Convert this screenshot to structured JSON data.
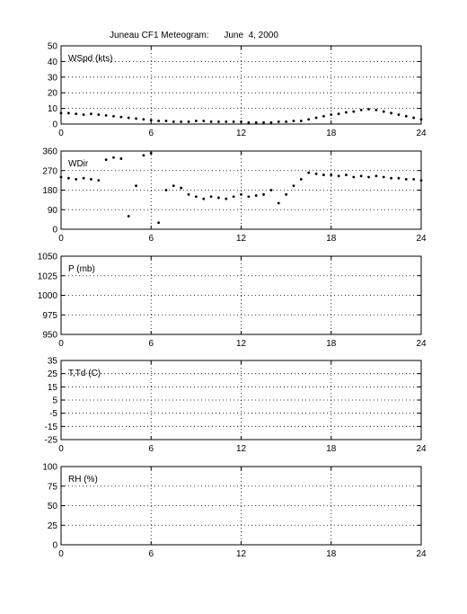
{
  "title": "Juneau CF1 Meteogram:      June  4, 2000",
  "chart_data": [
    {
      "type": "scatter",
      "label": "WSpd (kts)",
      "xlim": [
        0,
        24
      ],
      "ylim": [
        0,
        50
      ],
      "xticks": [
        "0",
        "6",
        "12",
        "18",
        "24"
      ],
      "yticks": [
        "0",
        "10",
        "20",
        "30",
        "40",
        "50"
      ],
      "grid": true,
      "series": [
        {
          "x": [
            0,
            0.5,
            1,
            1.5,
            2,
            2.5,
            3,
            3.5,
            4,
            4.5,
            5,
            5.5,
            6,
            6.5,
            7,
            7.5,
            8,
            8.5,
            9,
            9.5,
            10,
            10.5,
            11,
            11.5,
            12,
            12.5,
            13,
            13.5,
            14,
            14.5,
            15,
            15.5,
            16,
            16.5,
            17,
            17.5,
            18,
            18.5,
            19,
            19.5,
            20,
            20.5,
            21,
            21.5,
            22,
            22.5,
            23,
            23.5,
            24
          ],
          "y": [
            7,
            7,
            6.5,
            6,
            6.5,
            6,
            5.5,
            5,
            4.5,
            4,
            3.5,
            3,
            2.5,
            2,
            2,
            1.5,
            1.5,
            1.5,
            2,
            2,
            1.5,
            1.5,
            1.5,
            1.5,
            1.5,
            1,
            1,
            1,
            1,
            1.5,
            1.5,
            2,
            2,
            3,
            4,
            5,
            6,
            6.5,
            7.5,
            8,
            9,
            9.5,
            9,
            8,
            7,
            6,
            5,
            4,
            3
          ]
        }
      ]
    },
    {
      "type": "scatter",
      "label": "WDir",
      "xlim": [
        0,
        24
      ],
      "ylim": [
        0,
        360
      ],
      "xticks": [
        "0",
        "6",
        "12",
        "18",
        "24"
      ],
      "yticks": [
        "0",
        "90",
        "180",
        "270",
        "360"
      ],
      "grid": true,
      "series": [
        {
          "x": [
            0,
            0.5,
            1,
            1.5,
            2,
            2.5,
            3,
            3.5,
            4,
            4.5,
            5,
            5.5,
            6,
            6.5,
            7,
            7.5,
            8,
            8.5,
            9,
            9.5,
            10,
            10.5,
            11,
            11.5,
            12,
            12.5,
            13,
            13.5,
            14,
            14.5,
            15,
            15.5,
            16,
            16.5,
            17,
            17.5,
            18,
            18.5,
            19,
            19.5,
            20,
            20.5,
            21,
            21.5,
            22,
            22.5,
            23,
            23.5,
            24
          ],
          "y": [
            240,
            235,
            230,
            235,
            230,
            225,
            320,
            330,
            325,
            60,
            200,
            340,
            350,
            30,
            180,
            200,
            190,
            160,
            150,
            140,
            150,
            145,
            140,
            150,
            160,
            150,
            155,
            160,
            180,
            120,
            160,
            200,
            230,
            260,
            255,
            250,
            250,
            245,
            250,
            240,
            245,
            240,
            245,
            240,
            235,
            235,
            230,
            230,
            225
          ]
        }
      ]
    },
    {
      "type": "scatter",
      "label": "P (mb)",
      "xlim": [
        0,
        24
      ],
      "ylim": [
        950,
        1050
      ],
      "xticks": [
        "0",
        "6",
        "12",
        "18",
        "24"
      ],
      "yticks": [
        "950",
        "975",
        "1000",
        "1025",
        "1050"
      ],
      "grid": true,
      "series": []
    },
    {
      "type": "scatter",
      "label": "T,Td (C)",
      "xlim": [
        0,
        24
      ],
      "ylim": [
        -25,
        35
      ],
      "xticks": [
        "0",
        "6",
        "12",
        "18",
        "24"
      ],
      "yticks": [
        "-25",
        "-15",
        "-5",
        "5",
        "15",
        "25",
        "35"
      ],
      "grid": true,
      "series": []
    },
    {
      "type": "scatter",
      "label": "RH (%)",
      "xlim": [
        0,
        24
      ],
      "ylim": [
        0,
        100
      ],
      "xticks": [
        "0",
        "6",
        "12",
        "18",
        "24"
      ],
      "yticks": [
        "0",
        "25",
        "50",
        "75",
        "100"
      ],
      "grid": true,
      "series": []
    }
  ]
}
